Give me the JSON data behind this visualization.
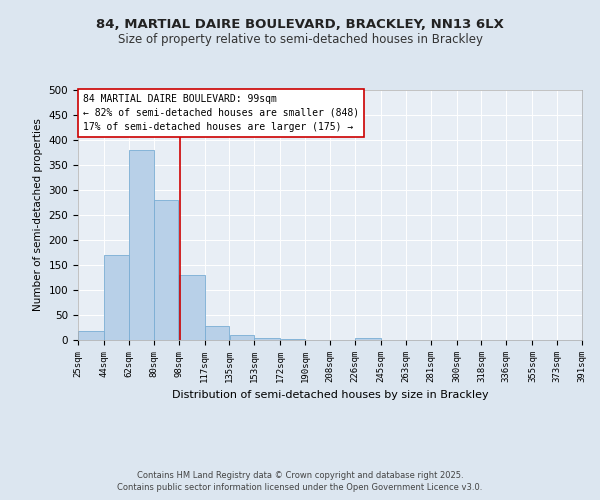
{
  "title_line1": "84, MARTIAL DAIRE BOULEVARD, BRACKLEY, NN13 6LX",
  "title_line2": "Size of property relative to semi-detached houses in Brackley",
  "bar_values": [
    18,
    170,
    380,
    280,
    130,
    28,
    10,
    5,
    3,
    0,
    0,
    4,
    0,
    0,
    1,
    0,
    0,
    0,
    0,
    0
  ],
  "bin_edges": [
    25,
    44,
    62,
    80,
    98,
    117,
    135,
    153,
    172,
    190,
    208,
    226,
    245,
    263,
    281,
    300,
    318,
    336,
    355,
    373,
    391
  ],
  "tick_labels": [
    "25sqm",
    "44sqm",
    "62sqm",
    "80sqm",
    "98sqm",
    "117sqm",
    "135sqm",
    "153sqm",
    "172sqm",
    "190sqm",
    "208sqm",
    "226sqm",
    "245sqm",
    "263sqm",
    "281sqm",
    "300sqm",
    "318sqm",
    "336sqm",
    "355sqm",
    "373sqm",
    "391sqm"
  ],
  "ylabel": "Number of semi-detached properties",
  "xlabel": "Distribution of semi-detached houses by size in Brackley",
  "ylim": [
    0,
    500
  ],
  "yticks": [
    0,
    50,
    100,
    150,
    200,
    250,
    300,
    350,
    400,
    450,
    500
  ],
  "bar_color": "#b8d0e8",
  "bar_edge_color": "#7aadd4",
  "vline_x": 99,
  "vline_color": "#cc0000",
  "annotation_line1": "84 MARTIAL DAIRE BOULEVARD: 99sqm",
  "annotation_line2": "← 82% of semi-detached houses are smaller (848)",
  "annotation_line3": "17% of semi-detached houses are larger (175) →",
  "annotation_box_color": "#ffffff",
  "annotation_box_edge": "#cc0000",
  "footer_line1": "Contains HM Land Registry data © Crown copyright and database right 2025.",
  "footer_line2": "Contains public sector information licensed under the Open Government Licence v3.0.",
  "background_color": "#dce6f0",
  "plot_bg_color": "#e8eef5"
}
